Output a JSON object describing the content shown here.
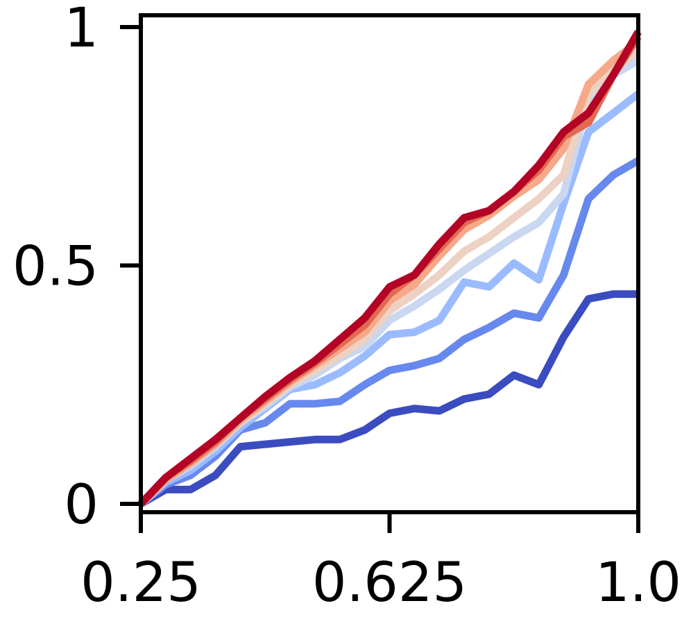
{
  "chart_data": {
    "type": "line",
    "title": "",
    "xlabel": "",
    "ylabel": "",
    "xlim": [
      0.25,
      1.0
    ],
    "ylim": [
      0,
      1
    ],
    "x_ticks": [
      {
        "value": 0.25,
        "label": "0.25"
      },
      {
        "value": 0.625,
        "label": "0.625"
      },
      {
        "value": 1.0,
        "label": "1.0"
      }
    ],
    "y_ticks": [
      {
        "value": 0,
        "label": "0"
      },
      {
        "value": 0.5,
        "label": "0.5"
      },
      {
        "value": 1,
        "label": "1"
      }
    ],
    "grid": false,
    "legend": "none",
    "x": [
      0.25,
      0.2875,
      0.325,
      0.3625,
      0.4,
      0.4375,
      0.475,
      0.5125,
      0.55,
      0.5875,
      0.625,
      0.6625,
      0.7,
      0.7375,
      0.775,
      0.8125,
      0.85,
      0.8875,
      0.925,
      0.9625,
      1.0
    ],
    "series": [
      {
        "color": "#3b4cc0",
        "values": [
          0.0,
          0.03,
          0.03,
          0.06,
          0.12,
          0.125,
          0.13,
          0.135,
          0.135,
          0.155,
          0.19,
          0.2,
          0.195,
          0.22,
          0.23,
          0.27,
          0.25,
          0.35,
          0.43,
          0.44,
          0.44
        ]
      },
      {
        "color": "#6788ee",
        "values": [
          0.0,
          0.04,
          0.06,
          0.1,
          0.155,
          0.17,
          0.21,
          0.21,
          0.215,
          0.25,
          0.28,
          0.29,
          0.305,
          0.345,
          0.37,
          0.4,
          0.39,
          0.48,
          0.64,
          0.69,
          0.72
        ]
      },
      {
        "color": "#9abbff",
        "values": [
          0.0,
          0.045,
          0.07,
          0.11,
          0.16,
          0.2,
          0.24,
          0.25,
          0.275,
          0.31,
          0.355,
          0.36,
          0.385,
          0.465,
          0.455,
          0.505,
          0.47,
          0.63,
          0.78,
          0.82,
          0.86
        ]
      },
      {
        "color": "#c9d7f0",
        "values": [
          0.0,
          0.05,
          0.08,
          0.12,
          0.17,
          0.205,
          0.245,
          0.27,
          0.305,
          0.33,
          0.385,
          0.415,
          0.45,
          0.49,
          0.525,
          0.56,
          0.59,
          0.65,
          0.85,
          0.9,
          0.93
        ]
      },
      {
        "color": "#edd1c2",
        "values": [
          0.0,
          0.05,
          0.085,
          0.125,
          0.17,
          0.21,
          0.25,
          0.28,
          0.31,
          0.345,
          0.405,
          0.44,
          0.48,
          0.53,
          0.56,
          0.6,
          0.64,
          0.69,
          0.86,
          0.91,
          0.95
        ]
      },
      {
        "color": "#f7a889",
        "values": [
          0.0,
          0.05,
          0.085,
          0.125,
          0.175,
          0.215,
          0.255,
          0.29,
          0.325,
          0.36,
          0.425,
          0.46,
          0.52,
          0.575,
          0.605,
          0.645,
          0.68,
          0.745,
          0.88,
          0.93,
          0.97
        ]
      },
      {
        "color": "#e26952",
        "values": [
          0.0,
          0.055,
          0.09,
          0.13,
          0.18,
          0.22,
          0.26,
          0.295,
          0.335,
          0.375,
          0.44,
          0.48,
          0.535,
          0.59,
          0.615,
          0.655,
          0.7,
          0.77,
          0.8,
          0.9,
          0.98
        ]
      },
      {
        "color": "#b40426",
        "values": [
          0.0,
          0.055,
          0.095,
          0.135,
          0.18,
          0.225,
          0.265,
          0.3,
          0.345,
          0.39,
          0.455,
          0.48,
          0.545,
          0.6,
          0.615,
          0.655,
          0.71,
          0.78,
          0.82,
          0.9,
          0.99
        ]
      }
    ]
  }
}
